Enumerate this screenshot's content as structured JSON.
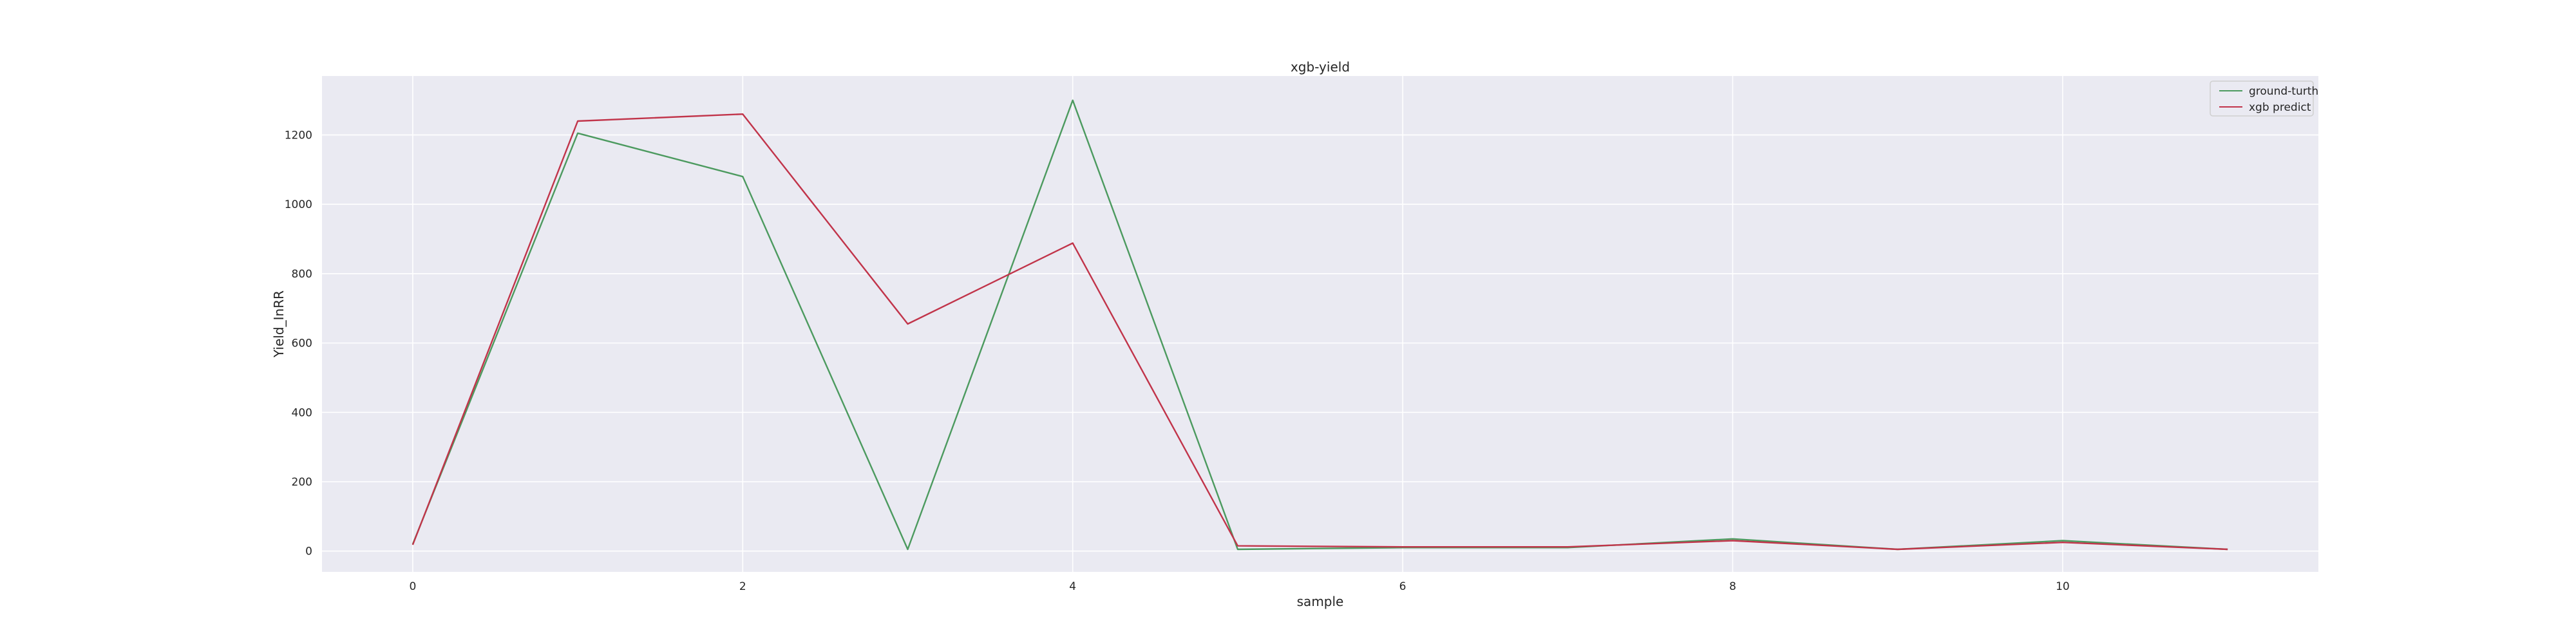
{
  "chart_data": {
    "type": "line",
    "title": "xgb-yield",
    "xlabel": "sample",
    "ylabel": "Yield_InRR",
    "x": [
      0,
      1,
      2,
      3,
      4,
      5,
      6,
      7,
      8,
      9,
      10,
      11
    ],
    "xticks": [
      0,
      2,
      4,
      6,
      8,
      10
    ],
    "yticks": [
      0,
      200,
      400,
      600,
      800,
      1000,
      1200
    ],
    "xlim": [
      -0.55,
      11.55
    ],
    "ylim": [
      -60,
      1370
    ],
    "grid": true,
    "background": "#eaeaf2",
    "legend": "top-right",
    "series": [
      {
        "name": "ground-turth",
        "color": "#4c9a5f",
        "values": [
          20,
          1205,
          1080,
          5,
          1300,
          5,
          10,
          10,
          35,
          5,
          30,
          5
        ]
      },
      {
        "name": "xgb predict",
        "color": "#c1344a",
        "values": [
          18,
          1240,
          1260,
          655,
          888,
          15,
          12,
          12,
          30,
          5,
          25,
          5
        ]
      }
    ]
  }
}
